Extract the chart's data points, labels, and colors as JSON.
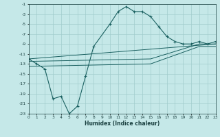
{
  "xlabel": "Humidex (Indice chaleur)",
  "bg_color": "#c5e8e8",
  "grid_color": "#a0cccc",
  "line_color": "#1a6060",
  "xlim": [
    0,
    23
  ],
  "ylim": [
    -23,
    -1
  ],
  "xtick_labels": [
    "0",
    "1",
    "2",
    "3",
    "4",
    "5",
    "6",
    "7",
    "8",
    "9",
    "10",
    "11",
    "12",
    "13",
    "14",
    "15",
    "16",
    "17",
    "18",
    "19",
    "20",
    "21",
    "22",
    "23"
  ],
  "xticks": [
    0,
    1,
    2,
    3,
    4,
    5,
    6,
    7,
    8,
    9,
    10,
    11,
    12,
    13,
    14,
    15,
    16,
    17,
    18,
    19,
    20,
    21,
    22,
    23
  ],
  "yticks": [
    -1,
    -3,
    -5,
    -7,
    -9,
    -11,
    -13,
    -15,
    -17,
    -19,
    -21,
    -23
  ],
  "curve1_x": [
    0,
    1,
    2,
    3,
    4,
    5,
    6,
    7,
    8,
    10,
    11,
    12,
    13,
    14,
    15,
    16,
    17,
    18,
    19,
    20,
    21,
    22,
    23
  ],
  "curve1_y": [
    -12,
    -13,
    -14,
    -20,
    -19.5,
    -23,
    -21.5,
    -15.5,
    -9.5,
    -5,
    -2.5,
    -1.5,
    -2.5,
    -2.5,
    -3.5,
    -5.5,
    -7.5,
    -8.5,
    -9,
    -9,
    -8.5,
    -9,
    -8.5
  ],
  "curve2_x": [
    0,
    23
  ],
  "curve2_y": [
    -12,
    -9
  ],
  "curve3_x": [
    0,
    15,
    21,
    23
  ],
  "curve3_y": [
    -12.5,
    -12,
    -9,
    -9
  ],
  "curve4_x": [
    0,
    15,
    21,
    23
  ],
  "curve4_y": [
    -13.5,
    -13,
    -9.5,
    -9.5
  ]
}
